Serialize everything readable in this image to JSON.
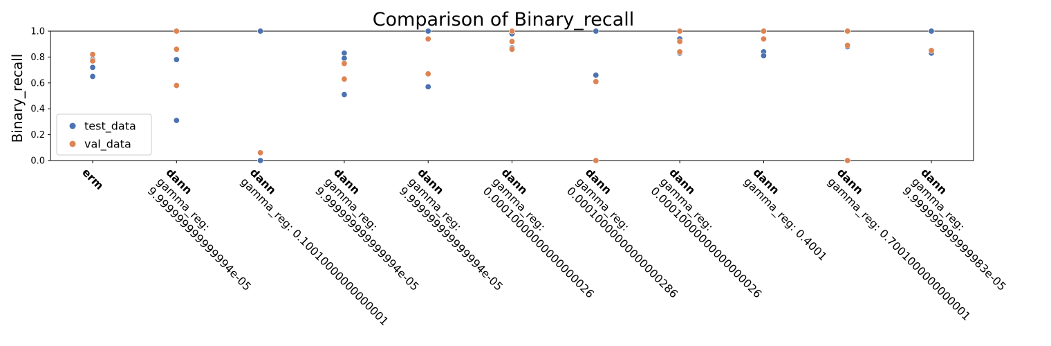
{
  "chart_data": {
    "type": "scatter",
    "title": "Comparison of Binary_recall",
    "xlabel": "",
    "ylabel": "Binary_recall",
    "ylim": [
      0,
      1.0
    ],
    "yticks": [
      "0.0",
      "0.2",
      "0.4",
      "0.6",
      "0.8",
      "1.0"
    ],
    "legend_position": "lower-left",
    "grid": false,
    "categories": [
      {
        "bold": "erm",
        "rest": []
      },
      {
        "bold": "dann",
        "rest": [
          "gamma_reg:",
          "9.999999999999994e-05"
        ]
      },
      {
        "bold": "dann",
        "rest": [
          "gamma_reg: 0.10010000000000001"
        ]
      },
      {
        "bold": "dann",
        "rest": [
          "gamma_reg:",
          "9.999999999999994e-05"
        ]
      },
      {
        "bold": "dann",
        "rest": [
          "gamma_reg:",
          "9.999999999999994e-05"
        ]
      },
      {
        "bold": "dann",
        "rest": [
          "gamma_reg:",
          "0.00010000000000000026"
        ]
      },
      {
        "bold": "dann",
        "rest": [
          "gamma_reg:",
          "0.00010000000000000286"
        ]
      },
      {
        "bold": "dann",
        "rest": [
          "gamma_reg:",
          "0.00010000000000000026"
        ]
      },
      {
        "bold": "dann",
        "rest": [
          "gamma_reg: 0.4001"
        ]
      },
      {
        "bold": "dann",
        "rest": [
          "gamma_reg: 0.7001000000000001"
        ]
      },
      {
        "bold": "dann",
        "rest": [
          "gamma_reg:",
          "9.999999999999983e-05"
        ]
      }
    ],
    "series": [
      {
        "name": "test_data",
        "color": "#4c72b0",
        "points": [
          [
            0,
            0.72
          ],
          [
            0,
            0.65
          ],
          [
            0,
            0.78
          ],
          [
            1,
            0.78
          ],
          [
            1,
            0.31
          ],
          [
            2,
            1.0
          ],
          [
            2,
            0.0
          ],
          [
            3,
            0.83
          ],
          [
            3,
            0.79
          ],
          [
            3,
            0.51
          ],
          [
            4,
            1.0
          ],
          [
            4,
            0.57
          ],
          [
            5,
            0.98
          ],
          [
            5,
            0.87
          ],
          [
            6,
            1.0
          ],
          [
            6,
            0.66
          ],
          [
            7,
            0.94
          ],
          [
            7,
            0.83
          ],
          [
            8,
            0.84
          ],
          [
            8,
            0.81
          ],
          [
            9,
            1.0
          ],
          [
            9,
            0.88
          ],
          [
            10,
            1.0
          ],
          [
            10,
            0.83
          ]
        ]
      },
      {
        "name": "val_data",
        "color": "#dd8452",
        "points": [
          [
            0,
            0.82
          ],
          [
            0,
            0.77
          ],
          [
            1,
            1.0
          ],
          [
            1,
            0.86
          ],
          [
            1,
            0.58
          ],
          [
            2,
            0.06
          ],
          [
            3,
            0.75
          ],
          [
            3,
            0.63
          ],
          [
            4,
            0.94
          ],
          [
            4,
            0.67
          ],
          [
            5,
            1.0
          ],
          [
            5,
            0.92
          ],
          [
            5,
            0.86
          ],
          [
            6,
            0.61
          ],
          [
            6,
            0.0
          ],
          [
            7,
            1.0
          ],
          [
            7,
            0.92
          ],
          [
            7,
            0.84
          ],
          [
            8,
            1.0
          ],
          [
            8,
            0.94
          ],
          [
            9,
            1.0
          ],
          [
            9,
            0.89
          ],
          [
            9,
            0.0
          ],
          [
            10,
            0.85
          ]
        ]
      }
    ]
  }
}
